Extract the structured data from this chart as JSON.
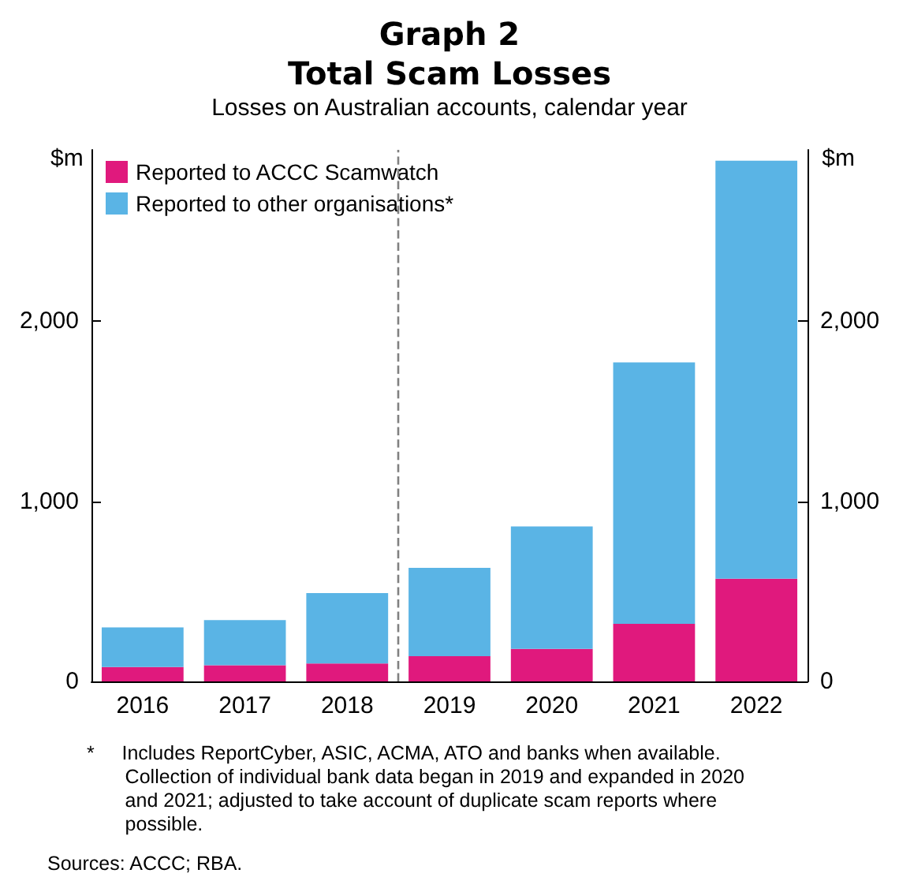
{
  "chart_data": {
    "type": "bar",
    "title": "Graph 2\nTotal Scam Losses",
    "subtitle": "Losses on Australian accounts, calendar year",
    "ylabel": "$m",
    "y2label": "$m",
    "x": [
      2016,
      2017,
      2018,
      2019,
      2020,
      2021,
      2022
    ],
    "xlim": [
      2015.5,
      2022.5
    ],
    "xticks": [
      2016,
      2017,
      2018,
      2019,
      2020,
      2021,
      2022
    ],
    "stacked": true,
    "series": [
      {
        "name": "Reported to ACCC Scamwatch",
        "color": "#e0197d",
        "values": [
          80,
          90,
          100,
          140,
          180,
          320,
          570
        ]
      },
      {
        "name": "Reported to other organisations*",
        "color": "#5ab4e5",
        "values": [
          220,
          250,
          390,
          490,
          680,
          1450,
          2320
        ]
      }
    ],
    "ylim": [
      0,
      2950
    ],
    "yticks": [
      0,
      {
        "value": 1000,
        "label": "1,000"
      },
      {
        "value": 2000,
        "label": "2,000"
      }
    ],
    "y2lim": [
      0,
      2950
    ],
    "y2ticks": [
      0,
      {
        "value": 1000,
        "label": "1,000"
      },
      {
        "value": 2000,
        "label": "2,000"
      }
    ],
    "ref_lines": [
      {
        "axis": "x",
        "value": 2018.5,
        "color": "#808080",
        "line_style": "dashed"
      }
    ],
    "grid": false,
    "legend": "top left",
    "annotations": [
      "*     Includes ReportCyber, ASIC, ACMA, ATO and banks when available.\n       Collection of individual bank data began in 2019 and expanded in 2020\n       and 2021; adjusted to take account of duplicate scam reports where\n       possible.",
      "Sources: ACCC; RBA."
    ]
  }
}
